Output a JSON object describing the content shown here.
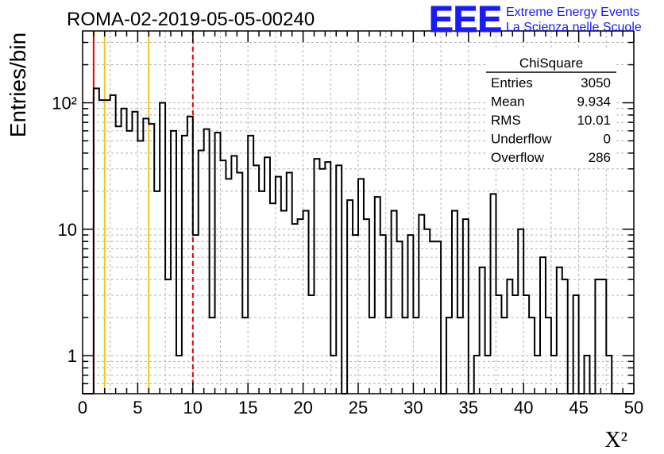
{
  "chart_data": {
    "type": "bar",
    "title": "ROMA-02-2019-05-05-00240",
    "xlabel": "X²",
    "ylabel": "Entries/bin",
    "xlim": [
      0,
      50
    ],
    "ylim": [
      0.5,
      370
    ],
    "log_y": true,
    "grid": true,
    "bin_width": 0.5,
    "x_ticks": [
      "0",
      "5",
      "10",
      "15",
      "20",
      "25",
      "30",
      "35",
      "40",
      "45",
      "50"
    ],
    "y_ticks": [
      {
        "value": 1,
        "label": "1"
      },
      {
        "value": 10,
        "label": "10"
      },
      {
        "value": 100,
        "label": "10²"
      }
    ],
    "values": [
      0,
      0,
      130,
      105,
      105,
      115,
      65,
      90,
      60,
      85,
      50,
      75,
      68,
      20,
      100,
      4,
      60,
      1,
      55,
      78,
      9,
      42,
      62,
      2,
      58,
      35,
      25,
      38,
      28,
      2,
      55,
      32,
      20,
      37,
      16,
      26,
      14,
      28,
      11,
      12,
      14,
      3,
      36,
      30,
      34,
      1,
      32,
      0.3,
      17,
      9,
      25,
      12,
      2,
      18,
      9,
      2,
      14,
      8,
      2,
      9,
      2,
      13,
      10,
      8,
      8,
      0.3,
      2,
      14,
      2,
      12,
      0.3,
      1,
      5,
      1,
      19,
      3,
      2,
      4,
      3,
      10,
      3,
      2,
      1,
      6,
      2,
      1,
      5,
      4,
      0.3,
      3,
      0.3,
      1,
      0.3,
      4,
      4,
      1,
      0.3,
      0.3,
      0.3,
      0.3
    ],
    "vertical_markers": [
      {
        "x": 1,
        "color": "#dd0000",
        "style": "solid"
      },
      {
        "x": 2,
        "color": "#f5c518",
        "style": "solid"
      },
      {
        "x": 6,
        "color": "#f5c518",
        "style": "solid"
      },
      {
        "x": 10,
        "color": "#dd0000",
        "style": "dashed"
      }
    ],
    "stats_box": {
      "title": "ChiSquare",
      "rows": [
        {
          "label": "Entries",
          "value": "3050"
        },
        {
          "label": "Mean",
          "value": "9.934"
        },
        {
          "label": "RMS",
          "value": "10.01"
        },
        {
          "label": "Underflow",
          "value": "0"
        },
        {
          "label": "Overflow",
          "value": "286"
        }
      ]
    }
  },
  "logo": {
    "mark": "EEE",
    "line1": "Extreme Energy Events",
    "line2": "La Scienza nelle Scuole",
    "color": "#1a1aff"
  }
}
